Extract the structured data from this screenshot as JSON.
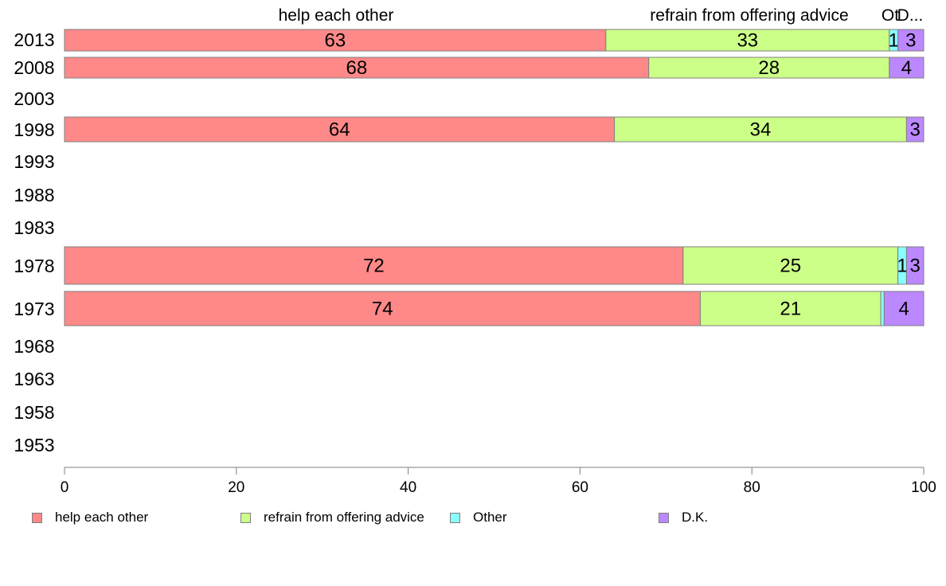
{
  "chart_data": {
    "type": "bar",
    "orientation": "horizontal",
    "stacked": true,
    "categories": [
      "2013",
      "2008",
      "2003",
      "1998",
      "1993",
      "1988",
      "1983",
      "1978",
      "1973",
      "1968",
      "1963",
      "1958",
      "1953"
    ],
    "series": [
      {
        "name": "help each other",
        "color": "#ff8888",
        "values": [
          63,
          68,
          null,
          64,
          null,
          null,
          null,
          72,
          74,
          null,
          null,
          null,
          null
        ]
      },
      {
        "name": "refrain from offering advice",
        "color": "#ccff88",
        "values": [
          33,
          28,
          null,
          34,
          null,
          null,
          null,
          25,
          21,
          null,
          null,
          null,
          null
        ]
      },
      {
        "name": "Other",
        "color": "#88ffff",
        "values": [
          1,
          0,
          null,
          0,
          null,
          null,
          null,
          1,
          0.4,
          null,
          null,
          null,
          null
        ]
      },
      {
        "name": "D.K.",
        "color": "#bb88ff",
        "values": [
          3,
          4,
          null,
          3,
          null,
          null,
          null,
          3,
          4,
          null,
          null,
          null,
          null
        ]
      }
    ],
    "data_labels": [
      [
        "63",
        "68",
        "",
        "64",
        "",
        "",
        "",
        "72",
        "74",
        "",
        "",
        "",
        ""
      ],
      [
        "33",
        "28",
        "",
        "34",
        "",
        "",
        "",
        "25",
        "21",
        "",
        "",
        "",
        ""
      ],
      [
        "1",
        "",
        "",
        "",
        "",
        "",
        "",
        "1",
        "",
        "",
        "",
        "",
        ""
      ],
      [
        "3",
        "4",
        "",
        "3",
        "",
        "",
        "",
        "3",
        "4",
        "",
        "",
        "",
        ""
      ]
    ],
    "column_headers": [
      "help each other",
      "refrain from offering advice",
      "Ot",
      "D..."
    ],
    "x_ticks": [
      "0",
      "20",
      "40",
      "60",
      "80",
      "100"
    ],
    "xlim": [
      0,
      100
    ],
    "title": "",
    "xlabel": "",
    "ylabel": "",
    "grid": false,
    "legend_position": "bottom",
    "legend": [
      "help each other",
      "refrain from offering advice",
      "Other",
      "D.K."
    ]
  }
}
